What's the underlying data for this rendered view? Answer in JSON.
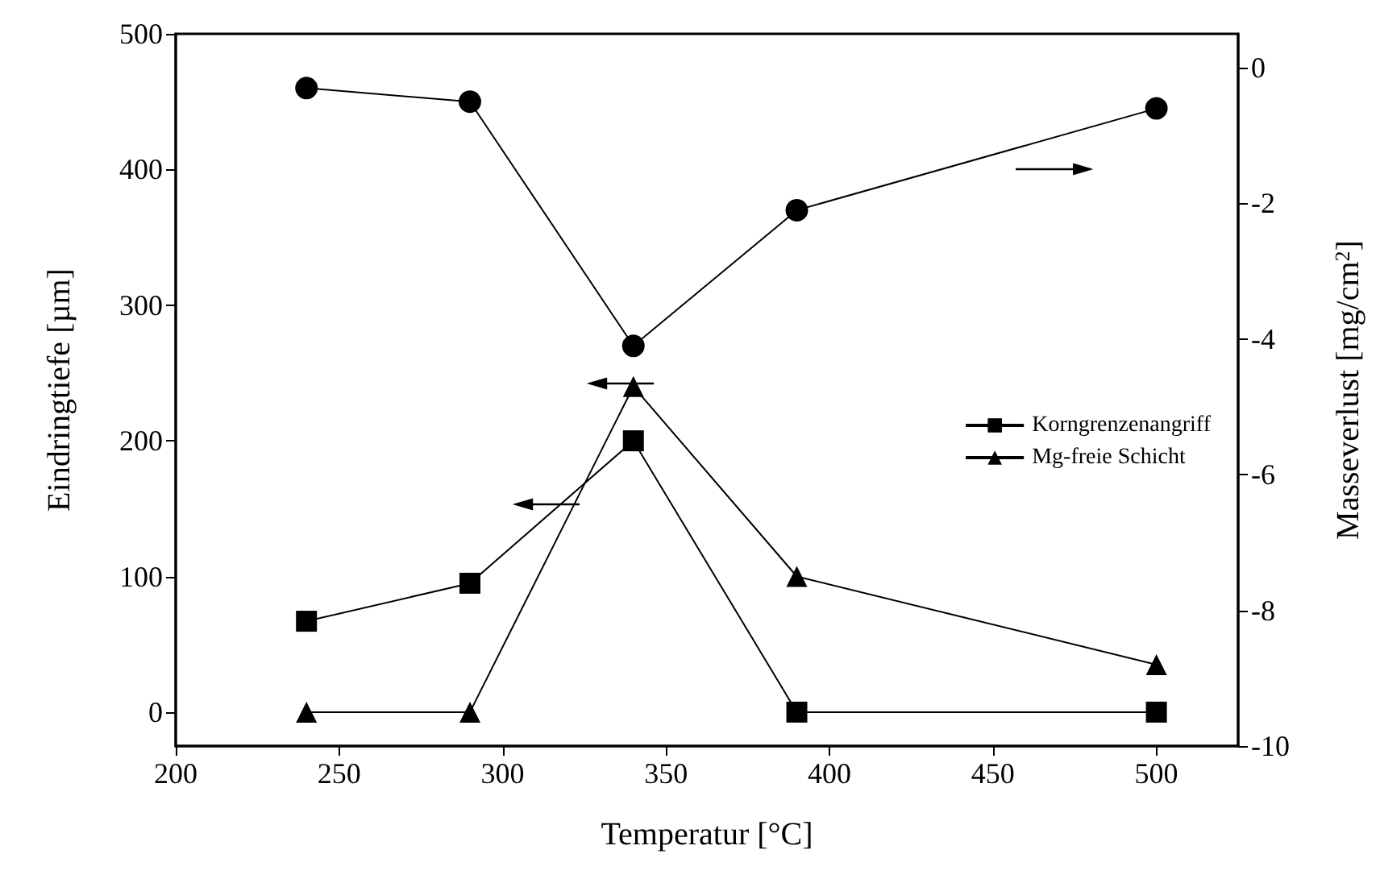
{
  "chart_data": {
    "type": "line",
    "xlabel": "Temperatur [°C]",
    "ylabel": "Eindringtiefe [µm]",
    "y2label": "Masseverlust [mg/cm$^{2}$]",
    "x": [
      240,
      290,
      340,
      390,
      500
    ],
    "xlim": [
      200,
      525
    ],
    "xticks": [
      200,
      250,
      300,
      350,
      400,
      450,
      500
    ],
    "ylim": [
      -25,
      500
    ],
    "yticks": [
      0,
      100,
      200,
      300,
      400,
      500
    ],
    "y2lim": [
      -10,
      0.5
    ],
    "y2ticks": [
      -10,
      -8,
      -6,
      -4,
      -2,
      0
    ],
    "grid": false,
    "legend": "center right",
    "line_style": "solid",
    "series": [
      {
        "name": "Korngrenzenangriff",
        "color": "#000000",
        "marker": "square",
        "values": [
          67,
          95,
          200,
          0,
          0
        ]
      },
      {
        "name": "Mg-freie Schicht",
        "color": "#000000",
        "marker": "triangle",
        "values": [
          0,
          0,
          240,
          100,
          35
        ]
      },
      {
        "color": "#000000",
        "marker": "circle",
        "axis": "y2",
        "values": [
          -0.3,
          -0.5,
          -4.1,
          -2.1,
          -0.6
        ]
      }
    ]
  }
}
